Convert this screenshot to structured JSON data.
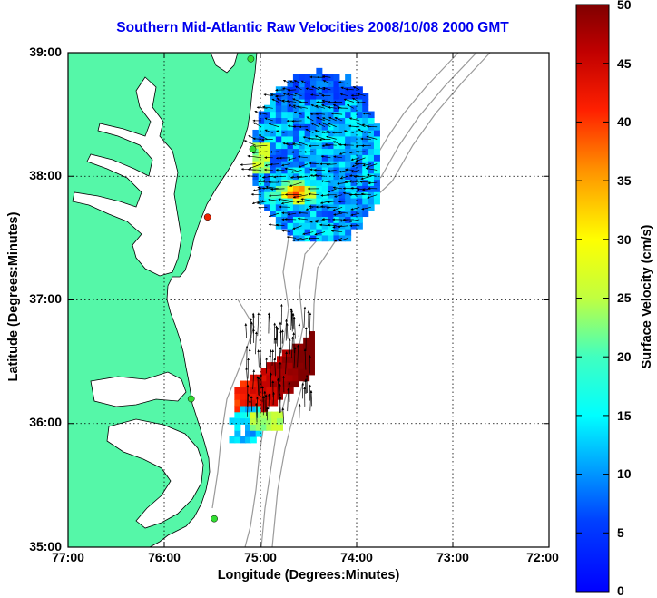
{
  "title": "Southern Mid-Atlantic Raw Velocities 2008/10/08 2000 GMT",
  "x_axis": {
    "label": "Longitude (Degrees:Minutes)",
    "range": [
      -77,
      -72
    ],
    "ticks": [
      {
        "value": -77,
        "label": "77:00"
      },
      {
        "value": -76,
        "label": "76:00"
      },
      {
        "value": -75,
        "label": "75:00"
      },
      {
        "value": -74,
        "label": "74:00"
      },
      {
        "value": -73,
        "label": "73:00"
      },
      {
        "value": -72,
        "label": "72:00"
      }
    ]
  },
  "y_axis": {
    "label": "Latitude (Degrees:Minutes)",
    "range": [
      35,
      39
    ],
    "ticks": [
      {
        "value": 39,
        "label": "39:00"
      },
      {
        "value": 38,
        "label": "38:00"
      },
      {
        "value": 37,
        "label": "37:00"
      },
      {
        "value": 36,
        "label": "36:00"
      },
      {
        "value": 35,
        "label": "35:00"
      }
    ]
  },
  "colorbar": {
    "label": "Surface Velocity (cm/s)",
    "range": [
      0,
      50
    ],
    "ticks": [
      "50",
      "45",
      "40",
      "35",
      "30",
      "25",
      "20",
      "15",
      "10",
      "5",
      "0"
    ]
  },
  "grid": "dotted",
  "colors": {
    "land": "#55f7a8",
    "ocean": "#ffffff",
    "coastline": "#000000",
    "bathymetry": "#9a9a9a",
    "title": "#0000ee",
    "site_active": "#33dd33",
    "site_alert": "#ee2200"
  },
  "sites": [
    {
      "lon": -75.1,
      "lat": 38.95,
      "status": "active"
    },
    {
      "lon": -75.08,
      "lat": 38.22,
      "status": "active"
    },
    {
      "lon": -75.55,
      "lat": 37.67,
      "status": "alert"
    },
    {
      "lon": -75.72,
      "lat": 36.2,
      "status": "active"
    },
    {
      "lon": -75.48,
      "lat": 35.23,
      "status": "active"
    }
  ],
  "velocity_regions": [
    {
      "region": "north",
      "lon_range": [
        -75.05,
        -73.75
      ],
      "lat_range": [
        37.5,
        38.85
      ],
      "speed_typical": 12,
      "speed_max": 36
    },
    {
      "region": "south",
      "lon_range": [
        -75.35,
        -74.4
      ],
      "lat_range": [
        35.82,
        36.8
      ],
      "speed_typical": 45,
      "speed_max": 50
    }
  ]
}
